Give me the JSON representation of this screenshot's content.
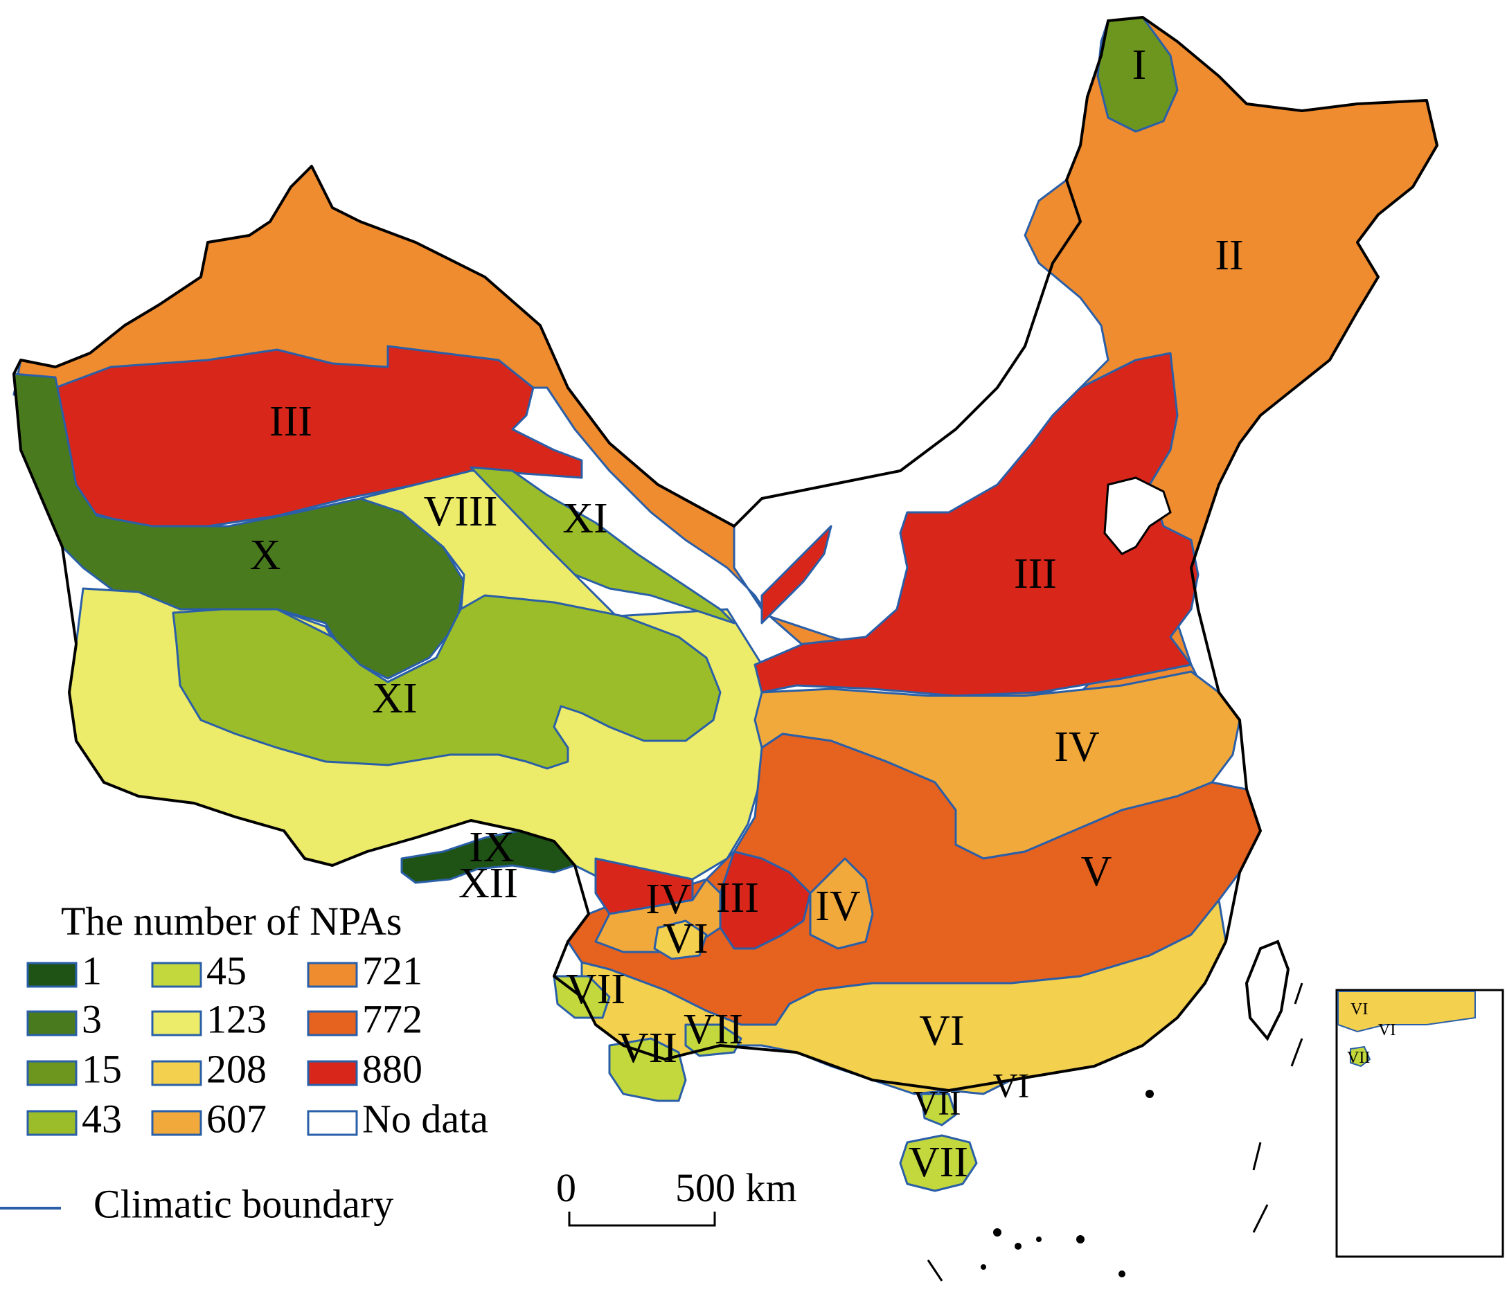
{
  "legend": {
    "title": "The number of NPAs",
    "items": [
      {
        "label": "1",
        "color": "#1f5316"
      },
      {
        "label": "3",
        "color": "#4a7a1e"
      },
      {
        "label": "15",
        "color": "#6d961f"
      },
      {
        "label": "43",
        "color": "#9bbd2a"
      },
      {
        "label": "45",
        "color": "#c3d83d"
      },
      {
        "label": "123",
        "color": "#ecec6a"
      },
      {
        "label": "208",
        "color": "#f3d04e"
      },
      {
        "label": "607",
        "color": "#f2a93b"
      },
      {
        "label": "721",
        "color": "#ef8c30"
      },
      {
        "label": "772",
        "color": "#e5621f"
      },
      {
        "label": "880",
        "color": "#d9261b"
      },
      {
        "label": "No data",
        "color": "#ffffff"
      }
    ],
    "boundary_label": "Climatic boundary",
    "boundary_color": "#2a5fa8"
  },
  "scale_bar": {
    "start": "0",
    "end": "500 km"
  },
  "zone_labels": {
    "I": "I",
    "II": "II",
    "III_nw": "III",
    "III_ne": "III",
    "III_sw": "III",
    "IV_e": "IV",
    "IV_sw": "IV",
    "IV_s": "IV",
    "V": "V",
    "VI_s": "VI",
    "VI_sw": "VI",
    "VI_se": "VI",
    "VII_a": "VII",
    "VII_b": "VII",
    "VII_c": "VII",
    "VII_d": "VII",
    "VII_hainan": "VII",
    "VIII": "VIII",
    "IX": "IX",
    "X": "X",
    "XI_n": "XI",
    "XI_c": "XI",
    "XII": "XII"
  },
  "inset_labels": {
    "a": "VI",
    "b": "VI",
    "c": "VII"
  }
}
